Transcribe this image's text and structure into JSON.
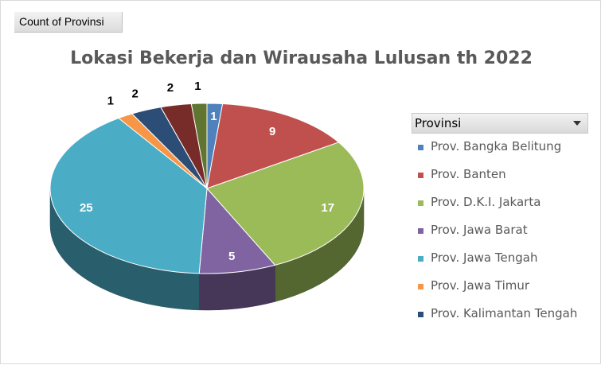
{
  "field_button": {
    "label": "Count of Provinsi"
  },
  "legend": {
    "header": "Provinsi",
    "dropdown_icon": "chevron-down-icon"
  },
  "chart_data": {
    "type": "pie",
    "style": "3d",
    "title": "Lokasi Bekerja dan Wirausaha Lulusan th 2022",
    "series": [
      {
        "name": "Count of Provinsi",
        "slices": [
          {
            "label": "Prov. Bangka Belitung",
            "value": 1,
            "color": "#4f81bd"
          },
          {
            "label": "Prov. Banten",
            "value": 9,
            "color": "#c0504d"
          },
          {
            "label": "Prov. D.K.I. Jakarta",
            "value": 17,
            "color": "#9bbb59"
          },
          {
            "label": "Prov. Jawa Barat",
            "value": 5,
            "color": "#8064a2"
          },
          {
            "label": "Prov. Jawa Tengah",
            "value": 25,
            "color": "#4bacc6"
          },
          {
            "label": "Prov. Jawa Timur",
            "value": 1,
            "color": "#f79646"
          },
          {
            "label": "Prov. Kalimantan Tengah",
            "value": 2,
            "color": "#2c4d75"
          },
          {
            "label": "",
            "value": 2,
            "color": "#772c2a"
          },
          {
            "label": "",
            "value": 1,
            "color": "#5f7530"
          }
        ]
      }
    ]
  }
}
